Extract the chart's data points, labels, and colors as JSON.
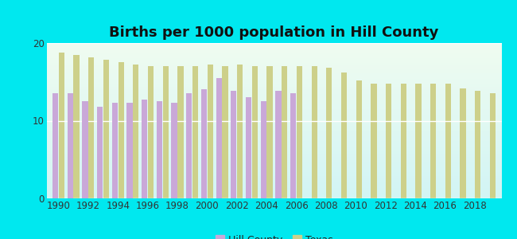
{
  "title": "Births per 1000 population in Hill County",
  "years": [
    1990,
    1991,
    1992,
    1993,
    1994,
    1995,
    1996,
    1997,
    1998,
    1999,
    2000,
    2001,
    2002,
    2003,
    2004,
    2005,
    2006,
    2007,
    2008,
    2009,
    2010,
    2011,
    2012,
    2013,
    2014,
    2015,
    2016,
    2017,
    2018,
    2019
  ],
  "hill_county": [
    13.5,
    13.5,
    12.5,
    11.8,
    12.3,
    12.3,
    12.7,
    12.5,
    12.3,
    13.5,
    14.0,
    15.5,
    13.8,
    13.0,
    12.5,
    13.8,
    13.5,
    null,
    null,
    null,
    null,
    null,
    null,
    null,
    null,
    null,
    null,
    null,
    null,
    null
  ],
  "texas": [
    18.8,
    18.5,
    18.2,
    17.8,
    17.5,
    17.2,
    17.0,
    17.0,
    17.0,
    17.0,
    17.2,
    17.0,
    17.2,
    17.0,
    17.0,
    17.0,
    17.0,
    17.0,
    16.8,
    16.2,
    15.2,
    14.8,
    14.8,
    14.8,
    14.8,
    14.8,
    14.8,
    14.2,
    13.8,
    13.5
  ],
  "hill_county_color": "#c9a8d8",
  "texas_color": "#cdd08a",
  "background_color": "#00e8ef",
  "ylim": [
    0,
    20
  ],
  "yticks": [
    0,
    10,
    20
  ],
  "bar_width": 0.42,
  "title_fontsize": 13,
  "legend_fontsize": 9,
  "plot_bg_top": "#f0faf0",
  "plot_bg_bottom": "#daf5f5"
}
